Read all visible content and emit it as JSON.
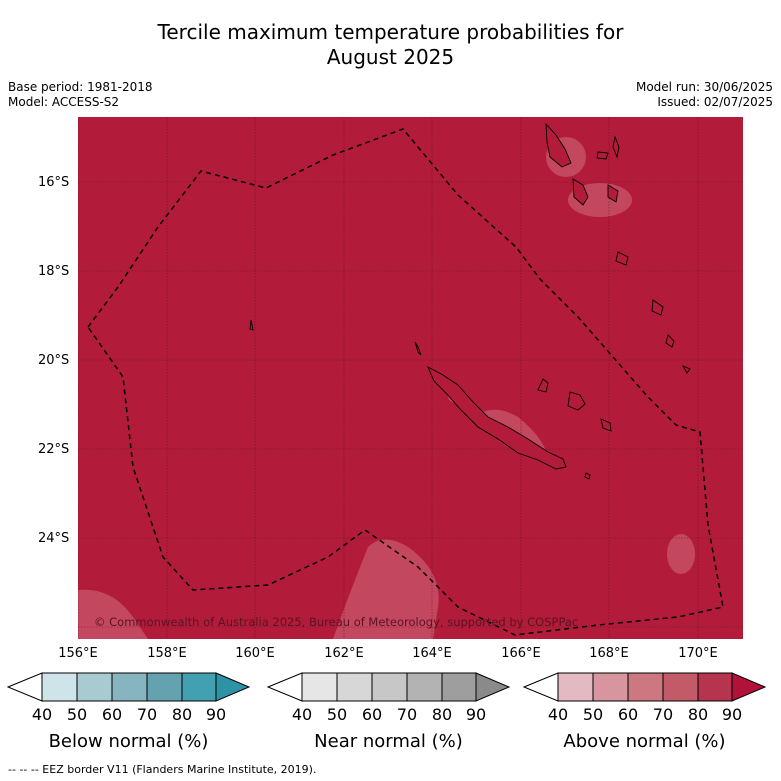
{
  "title": {
    "line1": "Tercile maximum temperature probabilities for",
    "line2": "August 2025"
  },
  "meta": {
    "base_period": "Base period: 1981-2018",
    "model": "Model: ACCESS-S2",
    "model_run": "Model run: 30/06/2025",
    "issued": "Issued: 02/07/2025"
  },
  "map": {
    "latitude_labels": [
      "16°S",
      "18°S",
      "20°S",
      "22°S",
      "24°S"
    ],
    "longitude_labels": [
      "156°E",
      "158°E",
      "160°E",
      "162°E",
      "164°E",
      "166°E",
      "168°E",
      "170°E"
    ],
    "copyright": "© Commonwealth of Australia 2025, Bureau of Meteorology, supported by COSPPac",
    "dominant_category": "Above normal 80-90",
    "colors": {
      "dominant": "#b21c3a",
      "lighter_patch": "#c3485f",
      "land_outline": "#000000",
      "eez": "#000000"
    }
  },
  "colorbars": [
    {
      "title": "Below normal (%)",
      "ticks": [
        "40",
        "50",
        "60",
        "70",
        "80",
        "90"
      ],
      "colors": [
        "#ffffff",
        "#cfe4e8",
        "#a8cbd1",
        "#86b5bf",
        "#64a2af",
        "#43a0b0",
        "#2d94a8"
      ]
    },
    {
      "title": "Near normal (%)",
      "ticks": [
        "40",
        "50",
        "60",
        "70",
        "80",
        "90"
      ],
      "colors": [
        "#ffffff",
        "#e6e6e6",
        "#d7d7d7",
        "#c7c7c7",
        "#b3b3b3",
        "#9e9e9e",
        "#8a8a8a"
      ]
    },
    {
      "title": "Above normal (%)",
      "ticks": [
        "40",
        "50",
        "60",
        "70",
        "80",
        "90"
      ],
      "colors": [
        "#ffffff",
        "#e3b9c2",
        "#d7959f",
        "#cd7880",
        "#c25a68",
        "#b7344e",
        "#b2123a"
      ]
    }
  ],
  "footer": "--  --  -- EEZ border V11 (Flanders Marine Institute, 2019)."
}
